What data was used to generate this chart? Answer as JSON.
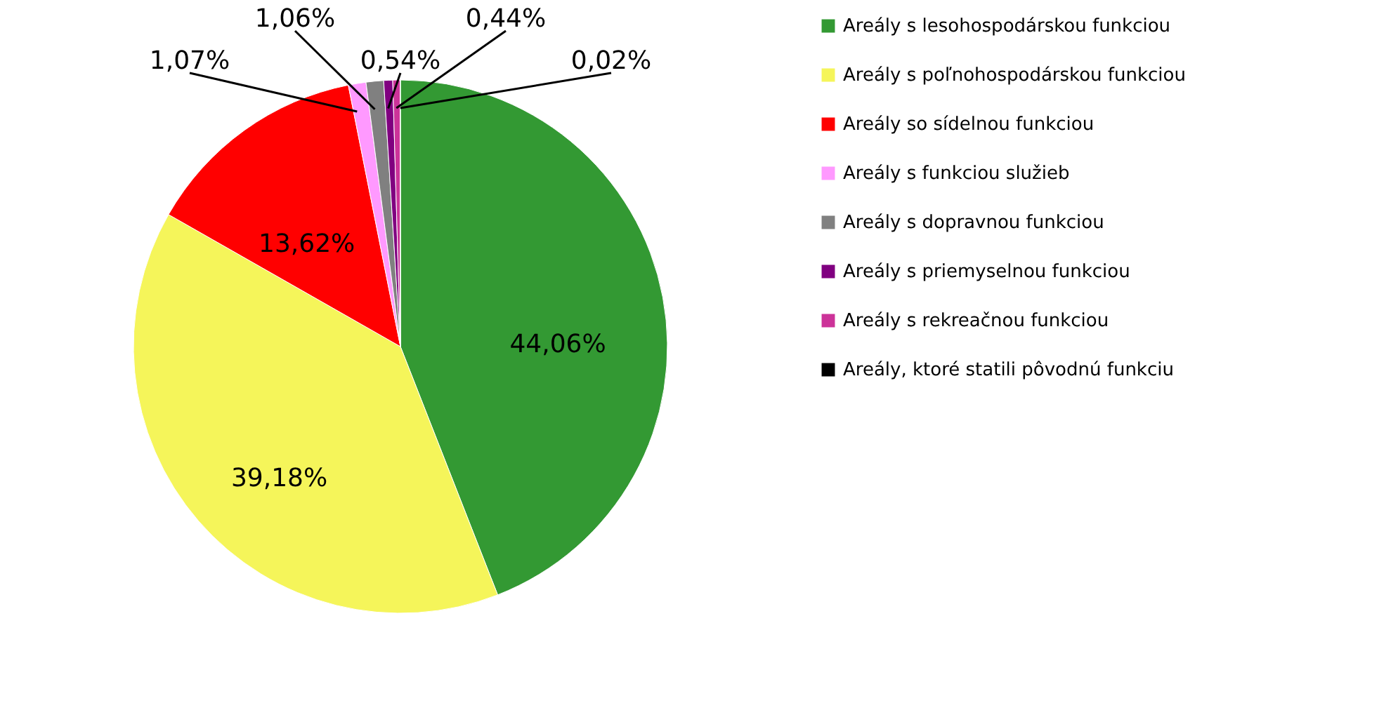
{
  "chart_data": {
    "type": "pie",
    "categories": [
      "Areály s lesohospodárskou funkciou",
      "Areály s poľnohospodárskou funkciou",
      "Areály so sídelnou funkciou",
      "Areály s funkciou služieb",
      "Areály s dopravnou funkciou",
      "Areály s priemyselnou funkciou",
      "Areály s rekreačnou funkciou",
      "Areály, ktoré statili pôvodnú funkciu"
    ],
    "values": [
      44.06,
      39.18,
      13.62,
      1.07,
      1.06,
      0.54,
      0.44,
      0.02
    ],
    "value_labels": [
      "44,06%",
      "39,18%",
      "13,62%",
      "1,07%",
      "1,06%",
      "0,54%",
      "0,44%",
      "0,02%"
    ],
    "colors": [
      "#339933",
      "#f5f55a",
      "#ff0000",
      "#ff99ff",
      "#808080",
      "#800080",
      "#cc3399",
      "#000000"
    ],
    "legend": "right"
  }
}
